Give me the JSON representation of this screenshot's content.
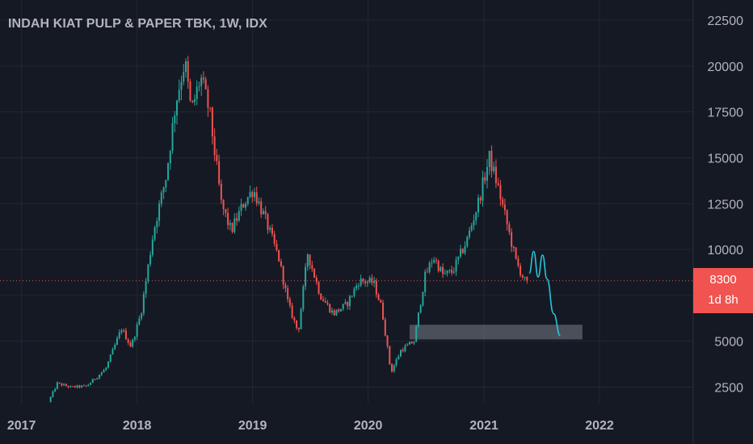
{
  "title": "INDAH KIAT PULP & PAPER TBK, 1W, IDX",
  "last_price": "8300",
  "countdown": "1d 8h",
  "colors": {
    "background": "#151924",
    "grid": "#232732",
    "axis_text": "#b2b5be",
    "up": "#26a69a",
    "down": "#ef5350",
    "price_line": "#ef5350",
    "drawing": "#26c6da",
    "zone": "#787b86"
  },
  "chart_data": {
    "type": "candlestick",
    "title": "INDAH KIAT PULP & PAPER TBK, 1W, IDX",
    "interval": "1W",
    "xlabel": "",
    "ylabel": "",
    "x_ticks": [
      "2017",
      "2018",
      "2019",
      "2020",
      "2021",
      "2022"
    ],
    "y_ticks": [
      2500,
      5000,
      7500,
      10000,
      12500,
      15000,
      17500,
      20000,
      22500
    ],
    "y_tick_labels": [
      "2500",
      "5000",
      "7500",
      "10000",
      "12500",
      "15000",
      "17500",
      "20000",
      "22500"
    ],
    "xlim": [
      "2016-10-25",
      "2022-10-24"
    ],
    "ylim": [
      1600,
      23600
    ],
    "grid": true,
    "last_price": 8300,
    "price_path": [
      [
        "2017-04-03",
        1700
      ],
      [
        "2017-05-01",
        2700
      ],
      [
        "2017-06-12",
        2500
      ],
      [
        "2017-08-01",
        2550
      ],
      [
        "2017-10-01",
        3500
      ],
      [
        "2017-11-20",
        5700
      ],
      [
        "2017-12-20",
        4700
      ],
      [
        "2018-01-20",
        6500
      ],
      [
        "2018-03-01",
        11000
      ],
      [
        "2018-04-10",
        14000
      ],
      [
        "2018-05-10",
        18000
      ],
      [
        "2018-06-08",
        20300
      ],
      [
        "2018-06-28",
        17500
      ],
      [
        "2018-07-28",
        19400
      ],
      [
        "2018-08-25",
        17500
      ],
      [
        "2018-10-01",
        12500
      ],
      [
        "2018-11-01",
        11000
      ],
      [
        "2018-12-10",
        12500
      ],
      [
        "2019-01-10",
        13300
      ],
      [
        "2019-02-20",
        11500
      ],
      [
        "2019-04-01",
        9500
      ],
      [
        "2019-05-01",
        7000
      ],
      [
        "2019-06-01",
        5500
      ],
      [
        "2019-07-01",
        9800
      ],
      [
        "2019-08-10",
        7500
      ],
      [
        "2019-09-20",
        6500
      ],
      [
        "2019-11-01",
        7000
      ],
      [
        "2019-12-10",
        8300
      ],
      [
        "2020-01-25",
        8200
      ],
      [
        "2020-02-20",
        6800
      ],
      [
        "2020-03-20",
        3300
      ],
      [
        "2020-04-20",
        4500
      ],
      [
        "2020-06-01",
        5000
      ],
      [
        "2020-07-05",
        8500
      ],
      [
        "2020-08-01",
        9600
      ],
      [
        "2020-09-01",
        8600
      ],
      [
        "2020-10-01",
        8800
      ],
      [
        "2020-11-15",
        10500
      ],
      [
        "2020-12-20",
        12500
      ],
      [
        "2021-01-25",
        15000
      ],
      [
        "2021-02-20",
        13500
      ],
      [
        "2021-03-20",
        11500
      ],
      [
        "2021-04-20",
        9300
      ],
      [
        "2021-05-17",
        8300
      ]
    ],
    "projection_path": [
      [
        "2021-05-24",
        8700
      ],
      [
        "2021-06-07",
        9900
      ],
      [
        "2021-06-21",
        8500
      ],
      [
        "2021-07-05",
        9700
      ],
      [
        "2021-07-19",
        8400
      ],
      [
        "2021-08-09",
        6500
      ],
      [
        "2021-08-30",
        5300
      ]
    ],
    "support_zone": {
      "x_start": "2020-05-11",
      "x_end": "2021-11-08",
      "y_low": 5100,
      "y_high": 5900
    }
  }
}
